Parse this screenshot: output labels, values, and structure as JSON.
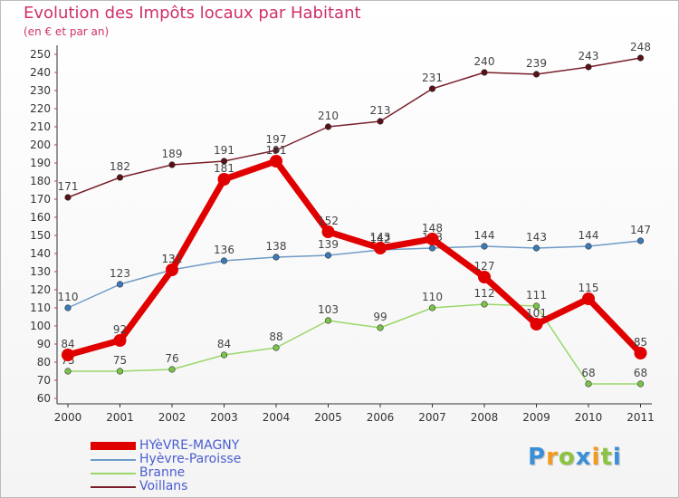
{
  "title": "Evolution des Impôts locaux par Habitant",
  "subtitle": "(en € et par an)",
  "logo": {
    "text": "Proxiti",
    "letters": [
      {
        "ch": "P",
        "color": "#3a8fd8"
      },
      {
        "ch": "r",
        "color": "#f39a1d"
      },
      {
        "ch": "o",
        "color": "#8cc43f"
      },
      {
        "ch": "x",
        "color": "#3a8fd8"
      },
      {
        "ch": "i",
        "color": "#f39a1d"
      },
      {
        "ch": "t",
        "color": "#8cc43f"
      },
      {
        "ch": "i",
        "color": "#3a8fd8"
      }
    ]
  },
  "chart_data": {
    "type": "line",
    "title": "Evolution des Impôts locaux par Habitant",
    "subtitle": "(en € et par an)",
    "xlabel": "",
    "ylabel": "",
    "ylim": [
      60,
      250
    ],
    "ytick_step": 10,
    "grid": false,
    "legend_position": "bottom-left",
    "categories": [
      "2000",
      "2001",
      "2002",
      "2003",
      "2004",
      "2005",
      "2006",
      "2007",
      "2008",
      "2009",
      "2010",
      "2011"
    ],
    "series": [
      {
        "name": "Voillans",
        "color": "#7a1f2b",
        "marker": "#5a1018",
        "values": [
          171,
          182,
          189,
          191,
          197,
          210,
          213,
          231,
          240,
          239,
          243,
          248
        ]
      },
      {
        "name": "Hyèvre-Paroisse",
        "color": "#6f9bc8",
        "marker": "#3a7ab8",
        "values": [
          110,
          123,
          131,
          136,
          138,
          139,
          142,
          143,
          144,
          143,
          144,
          147
        ]
      },
      {
        "name": "Branne",
        "color": "#9ad86a",
        "marker": "#7bc44a",
        "values": [
          75,
          75,
          76,
          84,
          88,
          103,
          99,
          110,
          112,
          111,
          68,
          68
        ]
      },
      {
        "name": "HYèVRE-MAGNY",
        "color": "#e00000",
        "marker": "#e00000",
        "highlight": true,
        "values": [
          84,
          92,
          131,
          181,
          191,
          152,
          143,
          148,
          127,
          101,
          115,
          85
        ]
      }
    ],
    "legend_order": [
      "HYèVRE-MAGNY",
      "Hyèvre-Paroisse",
      "Branne",
      "Voillans"
    ]
  }
}
